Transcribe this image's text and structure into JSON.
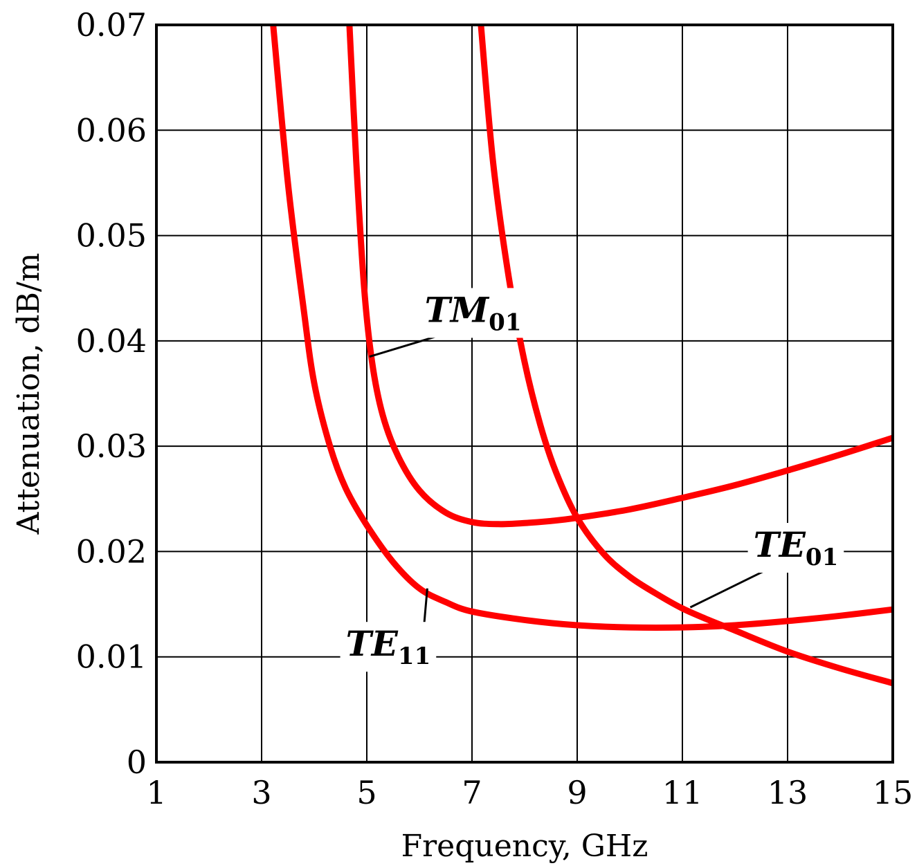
{
  "chart_data": {
    "type": "line",
    "xlabel": "Frequency, GHz",
    "ylabel": "Attenuation, dB/m",
    "xlim": [
      1,
      15
    ],
    "ylim": [
      0,
      0.07
    ],
    "xticks": [
      "1",
      "3",
      "5",
      "7",
      "9",
      "11",
      "13",
      "15"
    ],
    "yticks": [
      "0",
      "0.01",
      "0.02",
      "0.03",
      "0.04",
      "0.05",
      "0.06",
      "0.07"
    ],
    "grid": true,
    "line_color": "#ff0000",
    "series": [
      {
        "name": "TE11",
        "label_main": "TE",
        "label_sub": "11",
        "x": [
          3.22,
          3.5,
          3.8,
          4.0,
          4.3,
          4.6,
          5.0,
          5.5,
          6.0,
          6.5,
          7.0,
          8.0,
          9.0,
          10.0,
          11.0,
          12.0,
          13.0,
          14.0,
          15.0
        ],
        "y": [
          0.07,
          0.055,
          0.043,
          0.036,
          0.03,
          0.026,
          0.0225,
          0.019,
          0.0165,
          0.0152,
          0.0143,
          0.0135,
          0.013,
          0.0128,
          0.0128,
          0.013,
          0.0134,
          0.0139,
          0.0145
        ]
      },
      {
        "name": "TM01",
        "label_main": "TM",
        "label_sub": "01",
        "x": [
          4.67,
          4.8,
          4.95,
          5.1,
          5.3,
          5.6,
          6.0,
          6.5,
          7.0,
          7.5,
          8.0,
          8.5,
          9.0,
          10.0,
          11.0,
          12.0,
          13.0,
          14.0,
          15.0
        ],
        "y": [
          0.07,
          0.057,
          0.045,
          0.038,
          0.033,
          0.029,
          0.0258,
          0.0237,
          0.0228,
          0.0226,
          0.0227,
          0.0229,
          0.0232,
          0.024,
          0.0251,
          0.0263,
          0.0277,
          0.0292,
          0.0308
        ]
      },
      {
        "name": "TE01",
        "label_main": "TE",
        "label_sub": "01",
        "x": [
          7.17,
          7.4,
          7.7,
          8.0,
          8.3,
          8.6,
          9.0,
          9.5,
          10.0,
          10.5,
          11.0,
          11.5,
          12.0,
          13.0,
          14.0,
          15.0
        ],
        "y": [
          0.07,
          0.057,
          0.046,
          0.038,
          0.032,
          0.0275,
          0.0232,
          0.0198,
          0.0176,
          0.016,
          0.0146,
          0.0135,
          0.0125,
          0.0105,
          0.0089,
          0.0075
        ]
      }
    ],
    "annotations": [
      {
        "series": "TM01",
        "text_x": 6.1,
        "text_y": 0.0418,
        "point_x": 5.05,
        "point_y": 0.0385,
        "anchor": "start"
      },
      {
        "series": "TE01",
        "text_x": 12.35,
        "text_y": 0.0195,
        "point_x": 11.15,
        "point_y": 0.0147,
        "anchor": "start"
      },
      {
        "series": "TE11",
        "text_x": 4.6,
        "text_y": 0.0101,
        "point_x": 6.15,
        "point_y": 0.0165,
        "anchor": "start"
      }
    ]
  }
}
